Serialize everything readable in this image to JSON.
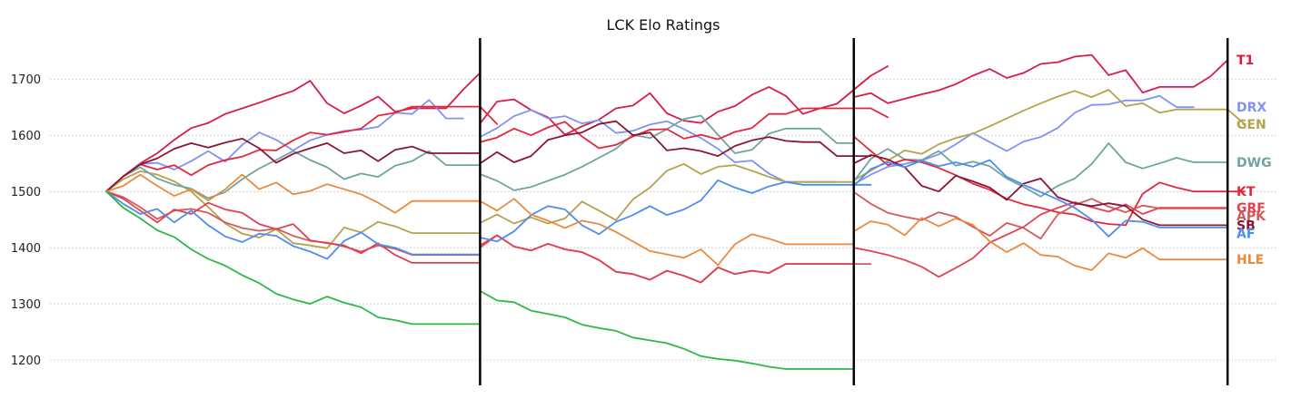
{
  "chart_data": {
    "type": "line",
    "title": "LCK Elo Ratings",
    "xlabel": "",
    "ylabel": "",
    "ylim": [
      1155,
      1773
    ],
    "xlim": [
      -6.5,
      75.5
    ],
    "yticks": [
      1200,
      1300,
      1400,
      1500,
      1600,
      1700
    ],
    "segment_boundaries": [
      22,
      44,
      66
    ],
    "grid": "horizontal",
    "series": [
      {
        "name": "T1",
        "color": "#d81c48",
        "segments": [
          [
            1500,
            1527,
            1550,
            1568,
            1592,
            1613,
            1622,
            1638,
            1648,
            1658,
            1669,
            1679,
            1697,
            1657,
            1639,
            1653,
            1669,
            1642,
            1648,
            1648,
            1648,
            1681,
            1711
          ],
          [
            1621,
            1660,
            1664,
            1645,
            1632,
            1601,
            1616,
            1628,
            1648,
            1653,
            1675,
            1639,
            1626,
            1622,
            1642,
            1652,
            1672,
            1686,
            1670,
            1638,
            1648,
            1656,
            1681,
            1706,
            1723
          ],
          [
            1668,
            1675,
            1657,
            1665,
            1673,
            1680,
            1691,
            1706,
            1718,
            1702,
            1711,
            1727,
            1730,
            1740,
            1743,
            1707,
            1716,
            1676,
            1686,
            1686,
            1686,
            1705,
            1734
          ]
        ]
      },
      {
        "name": "DRX",
        "color": "#8092f5",
        "segments": [
          [
            1500,
            1527,
            1549,
            1551,
            1539,
            1554,
            1572,
            1553,
            1583,
            1605,
            1592,
            1573,
            1591,
            1601,
            1608,
            1610,
            1615,
            1640,
            1638,
            1663,
            1630,
            1630
          ],
          [
            1597,
            1613,
            1634,
            1645,
            1630,
            1634,
            1621,
            1627,
            1604,
            1608,
            1619,
            1625,
            1611,
            1595,
            1576,
            1552,
            1555,
            1532,
            1517,
            1517,
            1517,
            1517
          ],
          [
            1513,
            1530,
            1544,
            1549,
            1555,
            1566,
            1584,
            1604,
            1588,
            1572,
            1589,
            1597,
            1613,
            1640,
            1654,
            1655,
            1662,
            1662,
            1670,
            1650,
            1650
          ]
        ]
      },
      {
        "name": "GEN",
        "color": "#b5a24a",
        "segments": [
          [
            1500,
            1522,
            1536,
            1530,
            1518,
            1500,
            1472,
            1443,
            1425,
            1418,
            1433,
            1408,
            1404,
            1399,
            1436,
            1427,
            1446,
            1438,
            1426,
            1426,
            1426,
            1426,
            1426
          ],
          [
            1444,
            1459,
            1443,
            1454,
            1443,
            1452,
            1482,
            1466,
            1449,
            1486,
            1507,
            1537,
            1549,
            1531,
            1544,
            1547,
            1537,
            1526,
            1517,
            1517,
            1517,
            1517,
            1517
          ],
          [
            1520,
            1537,
            1555,
            1573,
            1567,
            1584,
            1595,
            1603,
            1616,
            1630,
            1644,
            1657,
            1669,
            1679,
            1668,
            1681,
            1652,
            1657,
            1640,
            1646,
            1646,
            1646,
            1646,
            1620
          ]
        ]
      },
      {
        "name": "DWG",
        "color": "#6ea59f",
        "segments": [
          [
            1500,
            1527,
            1543,
            1523,
            1512,
            1505,
            1488,
            1499,
            1522,
            1541,
            1556,
            1572,
            1556,
            1543,
            1522,
            1532,
            1526,
            1546,
            1554,
            1572,
            1547,
            1547,
            1547
          ],
          [
            1531,
            1519,
            1502,
            1508,
            1519,
            1530,
            1544,
            1560,
            1576,
            1601,
            1595,
            1611,
            1629,
            1635,
            1601,
            1568,
            1574,
            1603,
            1612,
            1612,
            1612,
            1586,
            1586
          ],
          [
            1518,
            1558,
            1576,
            1557,
            1556,
            1572,
            1546,
            1553,
            1545,
            1523,
            1508,
            1491,
            1510,
            1523,
            1549,
            1586,
            1552,
            1541,
            1550,
            1560,
            1552,
            1552,
            1552
          ]
        ]
      },
      {
        "name": "KT",
        "color": "#e3283c",
        "segments": [
          [
            1500,
            1527,
            1548,
            1539,
            1547,
            1529,
            1547,
            1556,
            1562,
            1574,
            1573,
            1591,
            1605,
            1601,
            1606,
            1612,
            1635,
            1640,
            1651,
            1651,
            1651,
            1651,
            1651,
            1620
          ],
          [
            1588,
            1596,
            1612,
            1600,
            1614,
            1624,
            1598,
            1577,
            1583,
            1598,
            1610,
            1611,
            1594,
            1601,
            1593,
            1606,
            1613,
            1638,
            1638,
            1648,
            1648,
            1648,
            1648,
            1648,
            1632
          ],
          [
            1598,
            1572,
            1547,
            1557,
            1552,
            1542,
            1529,
            1514,
            1503,
            1487,
            1477,
            1471,
            1463,
            1459,
            1447,
            1442,
            1440,
            1496,
            1516,
            1507,
            1500,
            1500,
            1500,
            1500
          ]
        ]
      },
      {
        "name": "APK",
        "color": "#d45a5a",
        "segments": [
          [
            1500,
            1490,
            1472,
            1451,
            1466,
            1469,
            1462,
            1445,
            1435,
            1430,
            1434,
            1421,
            1412,
            1409,
            1402,
            1393,
            1404,
            1398,
            1387,
            1387,
            1387,
            1387,
            1387
          ],
          [
            1400,
            1422,
            1402,
            1395,
            1407,
            1397,
            1392,
            1378,
            1357,
            1353,
            1343,
            1359,
            1350,
            1338,
            1365,
            1353,
            1359,
            1355,
            1371,
            1371,
            1371,
            1371,
            1371,
            1371
          ],
          [
            1499,
            1478,
            1462,
            1455,
            1449,
            1463,
            1455,
            1437,
            1421,
            1444,
            1435,
            1416,
            1459,
            1476,
            1487,
            1473,
            1463,
            1475,
            1470,
            1470,
            1470,
            1470,
            1470
          ]
        ]
      },
      {
        "name": "GRF",
        "color": "#e24050",
        "segments": [
          [
            1500,
            1487,
            1466,
            1445,
            1468,
            1460,
            1480,
            1468,
            1462,
            1442,
            1433,
            1442,
            1413,
            1408,
            1404,
            1390,
            1408,
            1387,
            1373,
            1373,
            1373,
            1373,
            1373
          ],
          [
            1404,
            1422,
            1402,
            1395,
            1407,
            1397,
            1392,
            1378,
            1357,
            1353,
            1343,
            1359,
            1350,
            1338,
            1365,
            1353,
            1359,
            1355,
            1371,
            1371,
            1371,
            1371,
            1371
          ],
          [
            1400,
            1394,
            1387,
            1378,
            1366,
            1348,
            1364,
            1381,
            1409,
            1423,
            1437,
            1459,
            1471,
            1481,
            1472,
            1464,
            1477,
            1460,
            1471,
            1471,
            1471,
            1471,
            1471
          ]
        ]
      },
      {
        "name": "SB",
        "color": "#8b1535",
        "segments": [
          [
            1500,
            1527,
            1548,
            1559,
            1576,
            1586,
            1578,
            1587,
            1594,
            1577,
            1551,
            1567,
            1577,
            1586,
            1568,
            1573,
            1554,
            1574,
            1580,
            1568,
            1568,
            1568,
            1568
          ],
          [
            1550,
            1570,
            1552,
            1563,
            1592,
            1600,
            1605,
            1620,
            1625,
            1600,
            1605,
            1573,
            1577,
            1572,
            1563,
            1581,
            1591,
            1597,
            1590,
            1588,
            1588,
            1563,
            1563,
            1563
          ],
          [
            1550,
            1565,
            1557,
            1543,
            1510,
            1500,
            1528,
            1518,
            1507,
            1485,
            1514,
            1523,
            1490,
            1479,
            1474,
            1479,
            1474,
            1450,
            1440,
            1440,
            1440,
            1440,
            1440
          ]
        ]
      },
      {
        "name": "AF",
        "color": "#4b8ef2",
        "segments": [
          [
            1500,
            1478,
            1460,
            1469,
            1445,
            1466,
            1440,
            1420,
            1410,
            1425,
            1421,
            1403,
            1393,
            1380,
            1412,
            1427,
            1406,
            1400,
            1388,
            1388,
            1388,
            1388,
            1388
          ],
          [
            1418,
            1411,
            1429,
            1458,
            1474,
            1468,
            1440,
            1424,
            1446,
            1458,
            1474,
            1458,
            1468,
            1484,
            1520,
            1507,
            1497,
            1509,
            1517,
            1512,
            1512,
            1512,
            1512,
            1512
          ],
          [
            1510,
            1540,
            1552,
            1543,
            1555,
            1545,
            1552,
            1544,
            1556,
            1526,
            1512,
            1499,
            1486,
            1471,
            1450,
            1420,
            1448,
            1446,
            1436,
            1436,
            1436,
            1436,
            1436
          ]
        ]
      },
      {
        "name": "HLE",
        "color": "#ea8a3f",
        "segments": [
          [
            1500,
            1510,
            1530,
            1510,
            1492,
            1504,
            1484,
            1504,
            1530,
            1504,
            1516,
            1495,
            1501,
            1513,
            1504,
            1495,
            1480,
            1462,
            1483,
            1483,
            1483,
            1483,
            1483
          ],
          [
            1483,
            1466,
            1487,
            1459,
            1448,
            1435,
            1448,
            1442,
            1428,
            1411,
            1394,
            1388,
            1382,
            1397,
            1369,
            1406,
            1424,
            1416,
            1406,
            1406,
            1406,
            1406,
            1406
          ],
          [
            1429,
            1447,
            1441,
            1422,
            1453,
            1438,
            1452,
            1441,
            1411,
            1392,
            1408,
            1387,
            1384,
            1368,
            1360,
            1390,
            1382,
            1399,
            1379,
            1379,
            1379,
            1379,
            1379
          ]
        ]
      },
      {
        "name": "",
        "color": "#2db84a",
        "segments": [
          [
            1500,
            1471,
            1452,
            1431,
            1419,
            1397,
            1380,
            1368,
            1351,
            1337,
            1318,
            1308,
            1300,
            1313,
            1302,
            1294,
            1276,
            1271,
            1264,
            1264,
            1264,
            1264,
            1264
          ],
          [
            1323,
            1306,
            1303,
            1288,
            1282,
            1276,
            1263,
            1257,
            1252,
            1240,
            1235,
            1230,
            1220,
            1207,
            1202,
            1199,
            1194,
            1188,
            1184,
            1184,
            1184,
            1184,
            1184
          ]
        ]
      }
    ]
  }
}
